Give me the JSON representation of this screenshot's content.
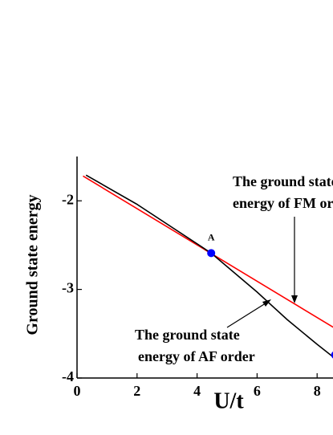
{
  "chart_data": {
    "type": "line",
    "xlabel": "U/t",
    "ylabel": "Ground state energy",
    "xlim": [
      0,
      10
    ],
    "ylim": [
      -4,
      -1.5
    ],
    "xticks": [
      0,
      2,
      4,
      6,
      8
    ],
    "yticks": [
      -4,
      -3,
      -2
    ],
    "series": [
      {
        "name": "The ground state energy of FM order",
        "color": "#ff0000",
        "x": [
          0.2,
          8.6
        ],
        "values": [
          -1.72,
          -3.44
        ]
      },
      {
        "name": "The ground state energy of AF order",
        "color": "#000000",
        "x": [
          0.3,
          2,
          4.47,
          6,
          7,
          8,
          8.6
        ],
        "values": [
          -1.71,
          -2.04,
          -2.59,
          -3.03,
          -3.34,
          -3.62,
          -3.78
        ]
      }
    ],
    "points": {
      "color": "#0000ff",
      "x": [
        4.47,
        8.6
      ],
      "values": [
        -2.59,
        -3.74
      ]
    },
    "annotations": [
      {
        "text": "A",
        "x": 4.47,
        "y": -2.42
      },
      {
        "text": [
          "The ground state",
          "energy of FM order"
        ]
      },
      {
        "text": [
          "The ground state",
          "energy of AF order"
        ]
      }
    ]
  }
}
